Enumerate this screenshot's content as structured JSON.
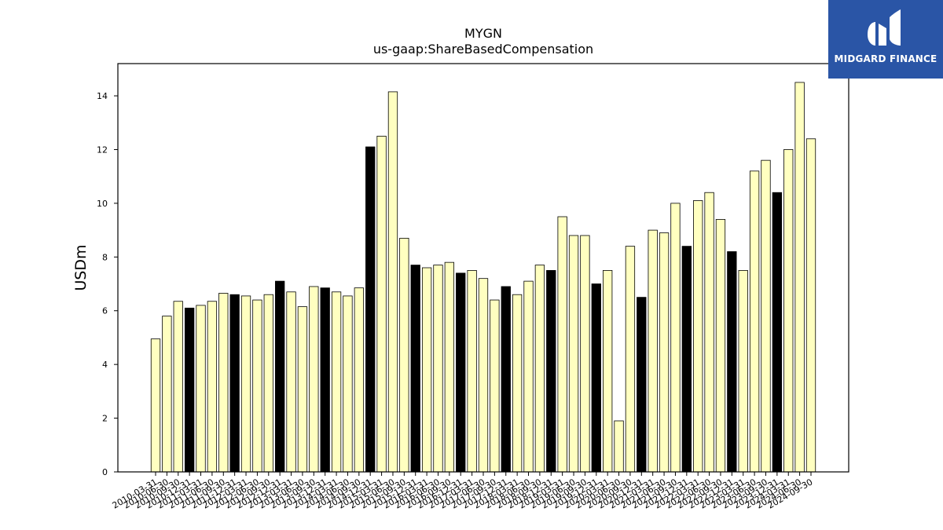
{
  "logo": {
    "text": "MIDGARD FINANCE"
  },
  "chart_data": {
    "type": "bar",
    "title": "MYGN",
    "subtitle": "us-gaap:ShareBasedCompensation",
    "ylabel": "USDm",
    "xlabel": "",
    "ylim": [
      0,
      15.2
    ],
    "yticks": [
      0,
      2,
      4,
      6,
      8,
      10,
      12,
      14
    ],
    "grid": false,
    "colors": {
      "quarter": "#ffffc0",
      "annual": "#000000",
      "edge": "#000000"
    },
    "categories": [
      "2010-03-31",
      "2010-06-30",
      "2010-09-30",
      "2010-12-31",
      "2011-03-31",
      "2011-06-30",
      "2011-09-30",
      "2011-12-31",
      "2012-03-31",
      "2012-06-30",
      "2012-09-30",
      "2012-12-31",
      "2013-03-31",
      "2013-06-30",
      "2013-09-30",
      "2013-12-31",
      "2014-03-31",
      "2014-06-30",
      "2014-09-30",
      "2014-12-31",
      "2015-03-31",
      "2015-06-30",
      "2015-09-30",
      "2015-12-31",
      "2016-03-31",
      "2016-06-30",
      "2016-09-30",
      "2016-12-31",
      "2017-03-31",
      "2017-06-30",
      "2017-09-30",
      "2017-12-31",
      "2018-03-31",
      "2018-06-30",
      "2018-09-30",
      "2018-12-31",
      "2019-03-31",
      "2019-06-30",
      "2019-09-30",
      "2019-12-31",
      "2020-03-31",
      "2020-06-30",
      "2020-09-30",
      "2020-12-31",
      "2021-03-31",
      "2021-06-30",
      "2021-09-30",
      "2021-12-31",
      "2022-03-31",
      "2022-06-30",
      "2022-09-30",
      "2022-12-31",
      "2023-03-31",
      "2023-06-30",
      "2023-09-30",
      "2023-12-31",
      "2024-03-31",
      "2024-06-30",
      "2024-09-30"
    ],
    "values": [
      4.95,
      5.8,
      6.35,
      6.1,
      6.2,
      6.35,
      6.65,
      6.6,
      6.55,
      6.4,
      6.6,
      7.1,
      6.7,
      6.15,
      6.9,
      6.85,
      6.7,
      6.55,
      6.85,
      12.1,
      12.5,
      14.15,
      8.7,
      7.7,
      7.6,
      7.7,
      7.8,
      7.4,
      7.5,
      7.2,
      6.4,
      6.9,
      6.6,
      7.1,
      7.7,
      7.5,
      9.5,
      8.8,
      8.8,
      7.0,
      7.5,
      1.9,
      8.4,
      6.5,
      9.0,
      8.9,
      10.0,
      8.4,
      10.1,
      10.4,
      9.4,
      8.2,
      7.5,
      11.2,
      11.6,
      10.4,
      12.0,
      14.5,
      12.4
    ],
    "highlight": [
      0,
      0,
      0,
      1,
      0,
      0,
      0,
      1,
      0,
      0,
      0,
      1,
      0,
      0,
      0,
      1,
      0,
      0,
      0,
      1,
      0,
      0,
      0,
      1,
      0,
      0,
      0,
      1,
      0,
      0,
      0,
      1,
      0,
      0,
      0,
      1,
      0,
      0,
      0,
      1,
      0,
      0,
      0,
      1,
      0,
      0,
      0,
      1,
      0,
      0,
      0,
      1,
      0,
      0,
      0,
      1,
      0,
      0,
      0
    ]
  }
}
